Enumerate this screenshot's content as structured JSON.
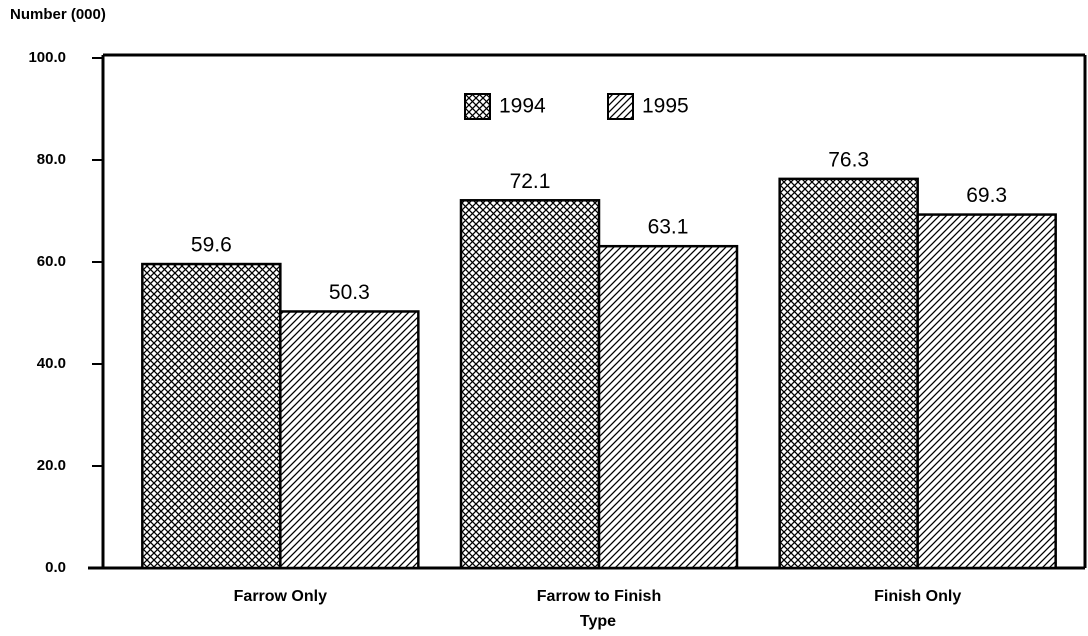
{
  "chart_data": {
    "type": "bar",
    "y_label": "Number (000)",
    "x_label": "Type",
    "categories": [
      "Farrow Only",
      "Farrow to Finish",
      "Finish Only"
    ],
    "series": [
      {
        "name": "1994",
        "color": "#000000",
        "pattern": "crosshatch",
        "values": [
          59.6,
          72.1,
          76.3
        ]
      },
      {
        "name": "1995",
        "color": "#000000",
        "pattern": "diagonal",
        "values": [
          50.3,
          63.1,
          69.3
        ]
      }
    ],
    "ylim": [
      0,
      100
    ],
    "yticks": [
      {
        "value": 0,
        "label": "0.0"
      },
      {
        "value": 20,
        "label": "20.0"
      },
      {
        "value": 40,
        "label": "40.0"
      },
      {
        "value": 60,
        "label": "60.0"
      },
      {
        "value": 80,
        "label": "80.0"
      },
      {
        "value": 100,
        "label": "100.0"
      }
    ],
    "legend": "top"
  }
}
